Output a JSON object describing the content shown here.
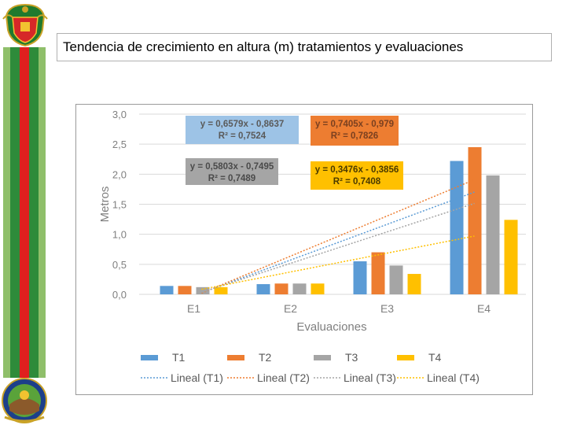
{
  "slide": {
    "title": "Tendencia de crecimiento en altura (m) tratamientos y evaluaciones"
  },
  "colors": {
    "T1": "#5B9BD5",
    "T2": "#ED7D31",
    "T3": "#A5A5A5",
    "T4": "#FFC000",
    "stripe_green": "#2e8b3a",
    "stripe_red": "#e01f1f",
    "stripe_light_green": "#8fbf6a"
  },
  "icons": {
    "top": "university-crest-icon",
    "bottom": "faculty-emblem-icon"
  },
  "chart_data": {
    "type": "bar",
    "title": "",
    "xlabel": "Evaluaciones",
    "ylabel": "Metros",
    "ylim": [
      0,
      3.0
    ],
    "yticks": [
      "0,0",
      "0,5",
      "1,0",
      "1,5",
      "2,0",
      "2,5",
      "3,0"
    ],
    "categories": [
      "E1",
      "E2",
      "E3",
      "E4"
    ],
    "series": [
      {
        "name": "T1",
        "values": [
          0.14,
          0.17,
          0.55,
          2.22
        ]
      },
      {
        "name": "T2",
        "values": [
          0.14,
          0.18,
          0.7,
          2.45
        ]
      },
      {
        "name": "T3",
        "values": [
          0.12,
          0.18,
          0.48,
          1.98
        ]
      },
      {
        "name": "T4",
        "values": [
          0.12,
          0.18,
          0.34,
          1.24
        ]
      }
    ],
    "trendlines": [
      {
        "name": "Lineal (T1)",
        "series": "T1",
        "slope": 0.6579,
        "intercept": -0.8637,
        "equation": "y = 0,6579x - 0,8637",
        "r2": "R² = 0,7524"
      },
      {
        "name": "Lineal (T2)",
        "series": "T2",
        "slope": 0.7405,
        "intercept": -0.979,
        "equation": "y = 0,7405x - 0,979",
        "r2": "R² = 0,7826"
      },
      {
        "name": "Lineal (T3)",
        "series": "T3",
        "slope": 0.5803,
        "intercept": -0.7495,
        "equation": "y = 0,5803x - 0,7495",
        "r2": "R² = 0,7489"
      },
      {
        "name": "Lineal (T4)",
        "series": "T4",
        "slope": 0.3476,
        "intercept": -0.3856,
        "equation": "y = 0,3476x - 0,3856",
        "r2": "R² = 0,7408"
      }
    ],
    "legend": {
      "placement": "bottom",
      "bars": [
        "T1",
        "T2",
        "T3",
        "T4"
      ],
      "lines": [
        "Lineal (T1)",
        "Lineal (T2)",
        "Lineal (T3)",
        "Lineal (T4)"
      ]
    }
  }
}
